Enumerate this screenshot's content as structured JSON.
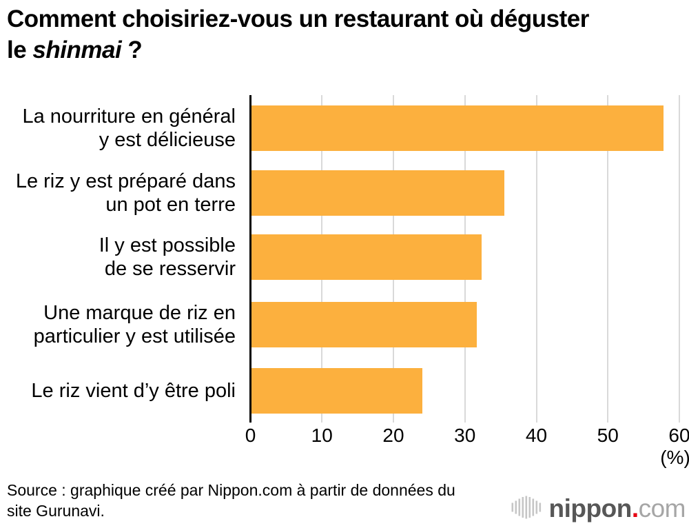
{
  "title": {
    "line1": "Comment choisiriez-vous un restaurant où déguster",
    "line2_prefix": "le ",
    "line2_italic": "shinmai",
    "line2_suffix": " ?"
  },
  "chart_data": {
    "type": "bar",
    "orientation": "horizontal",
    "title": "Comment choisiriez-vous un restaurant où déguster le shinmai ?",
    "categories": [
      "La nourriture en général\ny est délicieuse",
      "Le riz y est préparé dans\nun pot en terre",
      "Il y est possible\nde se resservir",
      "Une marque de riz en\nparticulier y est utilisée",
      "Le riz vient d’y être poli"
    ],
    "values": [
      57.6,
      35.4,
      32.2,
      31.5,
      23.9
    ],
    "xlim": [
      0,
      60
    ],
    "xticks": [
      0,
      10,
      20,
      30,
      40,
      50,
      60
    ],
    "unit_label": "(%)",
    "bar_color": "#fcb03e",
    "grid": true,
    "gridline_color": "#d9d9d9",
    "axis_color": "#000000"
  },
  "footer": {
    "source_text": "Source : graphique créé par Nippon.com à partir de données du\nsite Gurunavi.",
    "logo": {
      "name": "nippon.com",
      "text_bold": "nippon",
      "dot": ".",
      "text_light": "com"
    }
  }
}
